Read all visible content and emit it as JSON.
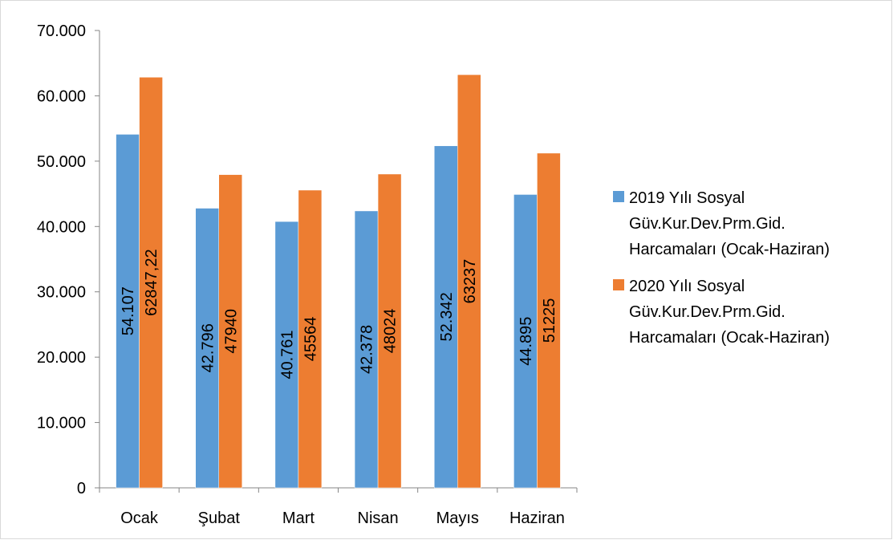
{
  "chart_data": {
    "type": "bar",
    "categories": [
      "Ocak",
      "Şubat",
      "Mart",
      "Nisan",
      "Mayıs",
      "Haziran"
    ],
    "series": [
      {
        "name": "2019 Yılı Sosyal Güv.Kur.Dev.Prm.Gid. Harcamaları (Ocak-Haziran)",
        "legend_lines": [
          "2019 Yılı Sosyal",
          "Güv.Kur.Dev.Prm.Gid.",
          "Harcamaları (Ocak-Haziran)"
        ],
        "values": [
          54107,
          42796,
          40761,
          42378,
          52342,
          44895
        ],
        "labels": [
          "54.107",
          "42.796",
          "40.761",
          "42.378",
          "52.342",
          "44.895"
        ],
        "color": "#5B9BD5"
      },
      {
        "name": "2020 Yılı Sosyal Güv.Kur.Dev.Prm.Gid. Harcamaları (Ocak-Haziran)",
        "legend_lines": [
          "2020 Yılı Sosyal",
          "Güv.Kur.Dev.Prm.Gid.",
          "Harcamaları (Ocak-Haziran)"
        ],
        "values": [
          62847.22,
          47940,
          45564,
          48024,
          63237,
          51225
        ],
        "labels": [
          "62847,22",
          "47940",
          "45564",
          "48024",
          "63237",
          "51225"
        ],
        "color": "#ED7D31"
      }
    ],
    "y_ticks": [
      0,
      10000,
      20000,
      30000,
      40000,
      50000,
      60000,
      70000
    ],
    "y_tick_labels": [
      "0",
      "10.000",
      "20.000",
      "30.000",
      "40.000",
      "50.000",
      "60.000",
      "70.000"
    ],
    "ylim": [
      0,
      70000
    ],
    "grid": false,
    "legend_position": "right",
    "title": "",
    "xlabel": "",
    "ylabel": ""
  }
}
